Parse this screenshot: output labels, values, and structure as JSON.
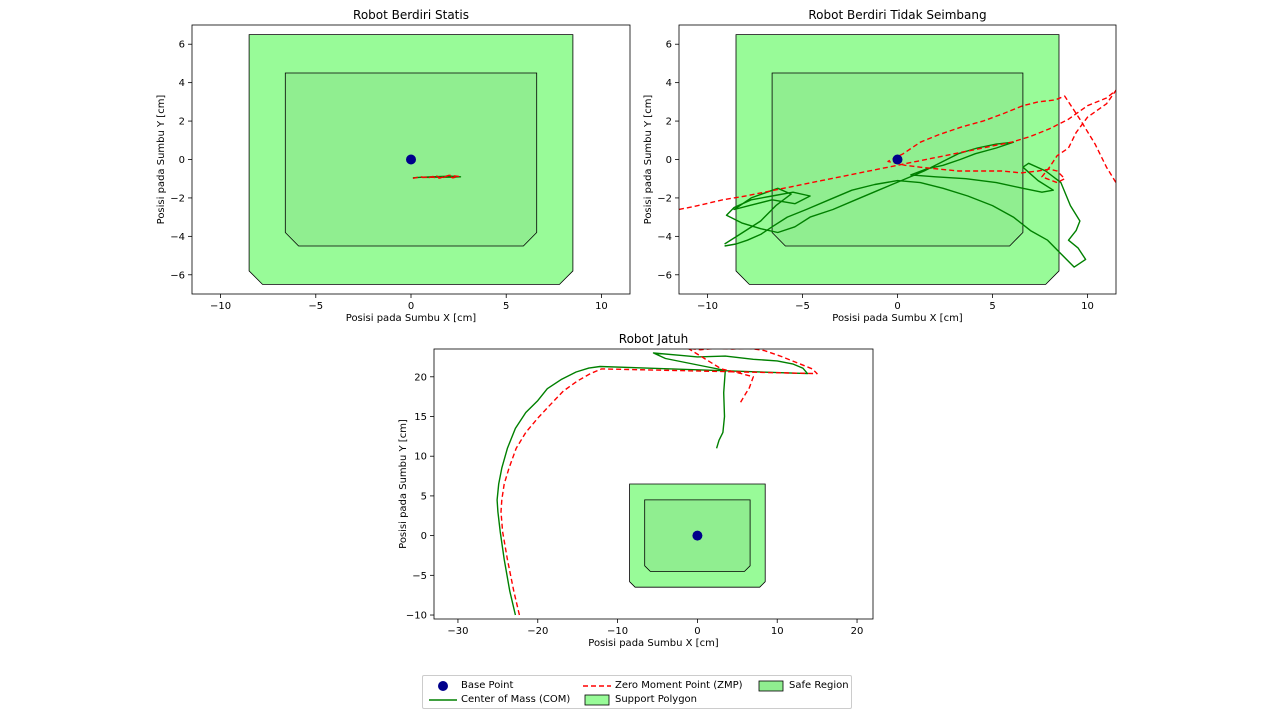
{
  "colors": {
    "support_polygon": "#98fb98",
    "safe_region": "#90ee90",
    "base_point": "#00008b",
    "com": "#008000",
    "zmp": "#ff0000"
  },
  "legend": {
    "base_point": "Base Point",
    "com": "Center of Mass (COM)",
    "zmp": "Zero Moment Point (ZMP)",
    "support_polygon": "Support Polygon",
    "safe_region": "Safe Region"
  },
  "chart_data": [
    {
      "type": "line",
      "title": "Robot Berdiri Statis",
      "xlabel": "Posisi pada Sumbu X [cm]",
      "ylabel": "Posisi pada Sumbu Y [cm]",
      "xlim": [
        -11.5,
        11.5
      ],
      "ylim": [
        -7,
        7
      ],
      "xticks": [
        -10,
        -5,
        0,
        5,
        10
      ],
      "yticks": [
        -6,
        -4,
        -2,
        0,
        2,
        4,
        6
      ],
      "support_polygon": [
        [
          -8.5,
          6.5
        ],
        [
          8.5,
          6.5
        ],
        [
          8.5,
          -5.8
        ],
        [
          7.8,
          -6.5
        ],
        [
          -7.8,
          -6.5
        ],
        [
          -8.5,
          -5.8
        ]
      ],
      "safe_region": [
        [
          -6.6,
          4.5
        ],
        [
          6.6,
          4.5
        ],
        [
          6.6,
          -3.8
        ],
        [
          5.9,
          -4.5
        ],
        [
          -5.9,
          -4.5
        ],
        [
          -6.6,
          -3.8
        ]
      ],
      "base_point": [
        0,
        0
      ],
      "series": [
        {
          "name": "Center of Mass (COM)",
          "x": [
            0.1,
            0.6,
            1.1,
            1.6,
            2.1,
            2.6,
            2.0,
            1.4,
            0.8
          ],
          "y": [
            -0.95,
            -0.92,
            -0.9,
            -0.88,
            -0.87,
            -0.9,
            -0.92,
            -0.91,
            -0.93
          ]
        },
        {
          "name": "Zero Moment Point (ZMP)",
          "x": [
            0.1,
            0.5,
            0.9,
            1.3,
            1.6,
            1.9,
            2.2,
            2.5,
            2.0,
            1.5,
            1.0,
            0.6
          ],
          "y": [
            -0.98,
            -0.9,
            -0.96,
            -0.84,
            -0.99,
            -0.85,
            -0.95,
            -0.88,
            -0.82,
            -0.97,
            -0.9,
            -0.94
          ]
        }
      ]
    },
    {
      "type": "line",
      "title": "Robot Berdiri Tidak Seimbang",
      "xlabel": "Posisi pada Sumbu X [cm]",
      "ylabel": "Posisi pada Sumbu Y [cm]",
      "xlim": [
        -11.5,
        11.5
      ],
      "ylim": [
        -7,
        7
      ],
      "xticks": [
        -10,
        -5,
        0,
        5,
        10
      ],
      "yticks": [
        -6,
        -4,
        -2,
        0,
        2,
        4,
        6
      ],
      "support_polygon": [
        [
          -8.5,
          6.5
        ],
        [
          8.5,
          6.5
        ],
        [
          8.5,
          -5.8
        ],
        [
          7.8,
          -6.5
        ],
        [
          -7.8,
          -6.5
        ],
        [
          -8.5,
          -5.8
        ]
      ],
      "safe_region": [
        [
          -6.6,
          4.5
        ],
        [
          6.6,
          4.5
        ],
        [
          6.6,
          -3.8
        ],
        [
          5.9,
          -4.5
        ],
        [
          -5.9,
          -4.5
        ],
        [
          -6.6,
          -3.8
        ]
      ],
      "base_point": [
        0,
        0
      ],
      "series": [
        {
          "name": "Center of Mass (COM)",
          "x": [
            -9.1,
            -8.3,
            -7.2,
            -6.4,
            -5.6,
            -6.3,
            -7.7,
            -8.6,
            -7.8,
            -6.6,
            -5.4,
            -4.6,
            -5.5,
            -6.6,
            -7.7,
            -8.6,
            -9.0,
            -8.2,
            -7.2,
            -6.3,
            -5.4,
            -4.6,
            -3.4,
            -2.2,
            -1.0,
            0.2,
            1.4,
            2.4,
            3.2,
            4.2,
            5.2,
            6.1,
            5.2,
            4.1,
            3.3,
            2.4,
            1.5,
            0.7,
            2.0,
            3.6,
            5.2,
            6.6,
            7.6,
            8.2,
            7.4,
            6.6,
            6.9,
            7.8,
            8.6,
            9.1,
            9.6,
            9.4,
            9.0,
            9.5,
            9.9,
            9.3,
            8.6,
            7.9,
            7.0,
            6.1,
            5.0,
            3.7,
            2.4,
            1.2,
            0.0,
            -1.2,
            -2.4,
            -3.6,
            -4.8,
            -5.8,
            -6.6,
            -7.2,
            -7.9,
            -8.5,
            -9.1
          ],
          "y": [
            -4.4,
            -3.9,
            -3.2,
            -2.4,
            -1.8,
            -1.5,
            -2.0,
            -2.6,
            -2.4,
            -2.1,
            -2.3,
            -1.9,
            -1.7,
            -1.9,
            -2.1,
            -2.5,
            -2.9,
            -3.3,
            -3.6,
            -3.8,
            -3.5,
            -3.0,
            -2.6,
            -2.1,
            -1.6,
            -1.1,
            -0.6,
            -0.1,
            0.3,
            0.6,
            0.8,
            0.9,
            0.6,
            0.3,
            0.0,
            -0.3,
            -0.5,
            -0.8,
            -0.9,
            -1.0,
            -1.2,
            -1.5,
            -1.7,
            -1.6,
            -1.1,
            -0.4,
            -0.2,
            -0.6,
            -1.2,
            -2.4,
            -3.2,
            -3.7,
            -4.2,
            -4.6,
            -5.2,
            -5.6,
            -4.9,
            -4.2,
            -3.7,
            -3.0,
            -2.4,
            -1.9,
            -1.5,
            -1.2,
            -1.1,
            -1.3,
            -1.6,
            -2.1,
            -2.6,
            -3.0,
            -3.5,
            -3.9,
            -4.2,
            -4.4,
            -4.5
          ]
        },
        {
          "name": "Zero Moment Point (ZMP)",
          "x": [
            -11.5,
            -10.5,
            -9.2,
            -8.0,
            -7.0,
            -6.0,
            -5.0,
            -4.0,
            -3.0,
            -2.0,
            -1.0,
            0.0,
            1.0,
            2.0,
            3.0,
            4.0,
            5.0,
            6.0,
            7.0,
            8.0,
            9.0,
            10.0,
            11.0,
            11.5,
            11.0,
            10.0,
            9.4,
            9.0,
            8.4,
            8.0,
            7.6,
            8.4,
            8.8,
            8.4,
            8.0,
            7.4,
            6.5,
            5.5,
            4.4,
            3.2,
            2.2,
            1.2,
            0.4,
            -0.5,
            0.3,
            1.2,
            2.2,
            3.4,
            4.5,
            5.6,
            6.6,
            7.4,
            8.3,
            8.8,
            9.6,
            10.4,
            11.0,
            11.5
          ],
          "y": [
            -2.6,
            -2.4,
            -2.1,
            -1.9,
            -1.7,
            -1.5,
            -1.3,
            -1.1,
            -0.9,
            -0.7,
            -0.5,
            -0.3,
            -0.1,
            0.1,
            0.3,
            0.5,
            0.7,
            0.9,
            1.2,
            1.6,
            2.1,
            2.8,
            3.2,
            3.6,
            2.9,
            2.2,
            1.4,
            0.6,
            0.2,
            -0.4,
            -0.9,
            -1.2,
            -1.0,
            -0.6,
            -0.5,
            -0.6,
            -0.7,
            -0.6,
            -0.6,
            -0.6,
            -0.5,
            -0.4,
            -0.3,
            -0.1,
            0.3,
            0.9,
            1.3,
            1.7,
            2.0,
            2.4,
            2.8,
            3.0,
            3.1,
            3.3,
            2.1,
            0.8,
            -0.4,
            -1.2
          ]
        }
      ]
    },
    {
      "type": "line",
      "title": "Robot Jatuh",
      "xlabel": "Posisi pada Sumbu X [cm]",
      "ylabel": "Posisi pada Sumbu Y [cm]",
      "xlim": [
        -33,
        22
      ],
      "ylim": [
        -10.5,
        23.5
      ],
      "xticks": [
        -30,
        -20,
        -10,
        0,
        10,
        20
      ],
      "yticks": [
        -10,
        -5,
        0,
        5,
        10,
        15,
        20
      ],
      "support_polygon": [
        [
          -8.5,
          6.5
        ],
        [
          8.5,
          6.5
        ],
        [
          8.5,
          -5.8
        ],
        [
          7.8,
          -6.5
        ],
        [
          -7.8,
          -6.5
        ],
        [
          -8.5,
          -5.8
        ]
      ],
      "safe_region": [
        [
          -6.6,
          4.5
        ],
        [
          6.6,
          4.5
        ],
        [
          6.6,
          -3.8
        ],
        [
          5.9,
          -4.5
        ],
        [
          -5.9,
          -4.5
        ],
        [
          -6.6,
          -3.8
        ]
      ],
      "base_point": [
        0,
        0
      ],
      "series": [
        {
          "name": "Center of Mass (COM)",
          "x": [
            -22.8,
            -23.5,
            -24.2,
            -24.7,
            -25.0,
            -25.1,
            -24.9,
            -24.5,
            -23.8,
            -22.8,
            -21.5,
            -20.0,
            -18.8,
            -17.0,
            -15.2,
            -13.6,
            -12.2,
            13.8,
            13.2,
            12.0,
            10.0,
            7.0,
            3.5,
            0.0,
            -2.0,
            -5.5,
            -4.0,
            -1.5,
            1.0,
            3.5,
            3.3,
            3.4,
            3.2,
            2.7,
            2.4
          ],
          "y": [
            -10.0,
            -7.0,
            -3.0,
            0.5,
            3.0,
            4.5,
            6.5,
            8.5,
            11.0,
            13.5,
            15.5,
            17.0,
            18.5,
            19.7,
            20.6,
            21.1,
            21.3,
            20.4,
            21.1,
            21.6,
            22.0,
            22.2,
            22.6,
            22.5,
            22.7,
            23.0,
            22.3,
            21.8,
            21.3,
            20.8,
            18.0,
            15.0,
            13.0,
            12.0,
            11.0
          ]
        },
        {
          "name": "Zero Moment Point (ZMP)",
          "x": [
            -22.3,
            -23.0,
            -23.8,
            -24.4,
            -24.6,
            -24.5,
            -24.2,
            -23.6,
            -22.7,
            -21.5,
            -20.0,
            -18.6,
            -16.8,
            -15.0,
            -13.4,
            -12.0,
            15.0,
            14.4,
            12.4,
            10.4,
            8.4,
            6.4,
            4.4,
            2.4,
            0.4,
            -1.2,
            3.0,
            5.5,
            7.0,
            6.5,
            6.0,
            5.3
          ],
          "y": [
            -10.0,
            -7.0,
            -3.0,
            0.5,
            3.0,
            4.5,
            6.5,
            8.5,
            11.0,
            13.0,
            14.8,
            16.3,
            18.2,
            19.5,
            20.4,
            21.0,
            20.4,
            21.0,
            21.8,
            22.6,
            23.3,
            23.6,
            23.5,
            23.6,
            23.4,
            23.6,
            21.0,
            20.4,
            20.0,
            18.6,
            17.8,
            16.6
          ]
        }
      ]
    }
  ]
}
